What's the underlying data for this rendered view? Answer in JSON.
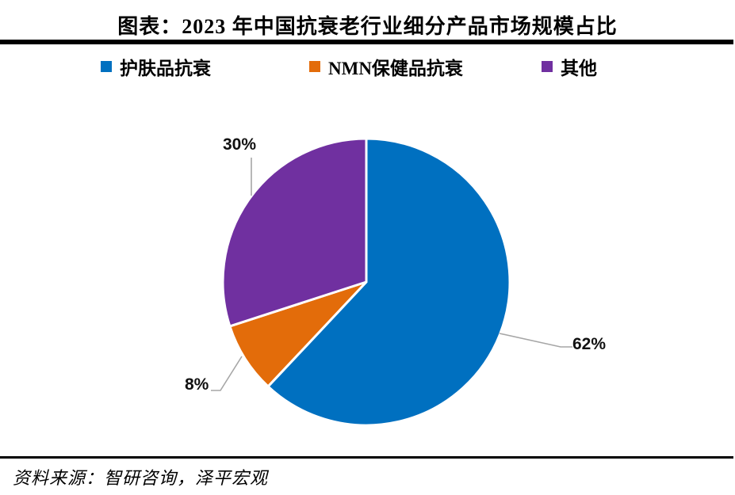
{
  "title": "图表：2023 年中国抗衰老行业细分产品市场规模占比",
  "source_note": "资料来源：智研咨询，泽平宏观",
  "chart_data": {
    "type": "pie",
    "title": "2023 年中国抗衰老行业细分产品市场规模占比",
    "unit": "%",
    "start_angle_deg": 0,
    "direction": "clockwise",
    "legend_position": "top",
    "slice_border_color": "#ffffff",
    "leader_line_color": "#a6a6a6",
    "series": [
      {
        "name": "护肤品抗衰",
        "value": 62,
        "pct_label": "62%",
        "color": "#0070C0"
      },
      {
        "name": "NMN保健品抗衰",
        "value": 8,
        "pct_label": "8%",
        "color": "#E36C0A"
      },
      {
        "name": "其他",
        "value": 30,
        "pct_label": "30%",
        "color": "#7030A0"
      }
    ]
  }
}
